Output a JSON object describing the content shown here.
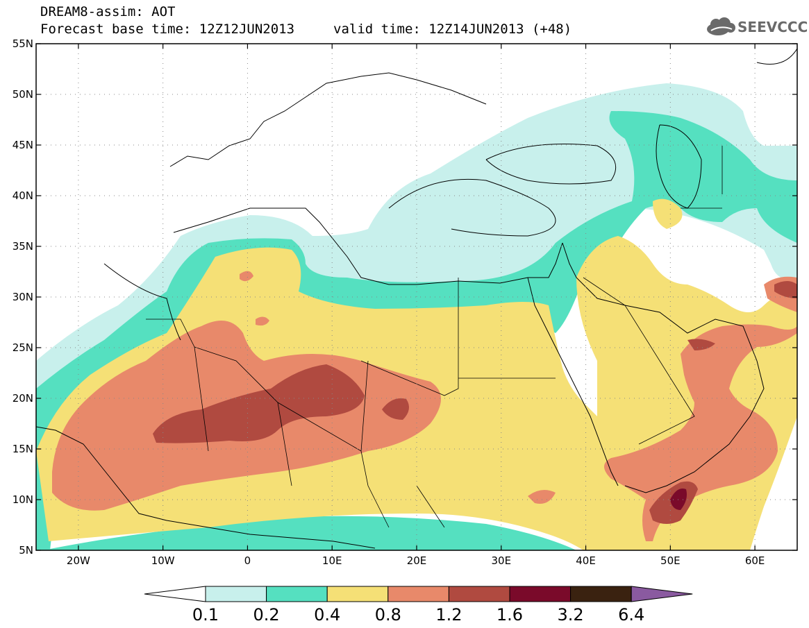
{
  "header": {
    "title_line1": "DREAM8-assim: AOT",
    "title_line2": "Forecast base time: 12Z12JUN2013",
    "valid": "valid time: 12Z14JUN2013 (+48)",
    "logo_text": "SEEVCCC"
  },
  "map": {
    "lon_range": [
      -25,
      65
    ],
    "lat_range": [
      5,
      55
    ],
    "x_ticks": [
      {
        "lon": -20,
        "label": "20W"
      },
      {
        "lon": -10,
        "label": "10W"
      },
      {
        "lon": 0,
        "label": "0"
      },
      {
        "lon": 10,
        "label": "10E"
      },
      {
        "lon": 20,
        "label": "20E"
      },
      {
        "lon": 30,
        "label": "30E"
      },
      {
        "lon": 40,
        "label": "40E"
      },
      {
        "lon": 50,
        "label": "50E"
      },
      {
        "lon": 60,
        "label": "60E"
      }
    ],
    "y_ticks": [
      {
        "lat": 55,
        "label": "55N"
      },
      {
        "lat": 50,
        "label": "50N"
      },
      {
        "lat": 45,
        "label": "45N"
      },
      {
        "lat": 40,
        "label": "40N"
      },
      {
        "lat": 35,
        "label": "35N"
      },
      {
        "lat": 30,
        "label": "30N"
      },
      {
        "lat": 25,
        "label": "25N"
      },
      {
        "lat": 20,
        "label": "20N"
      },
      {
        "lat": 15,
        "label": "15N"
      },
      {
        "lat": 10,
        "label": "10N"
      },
      {
        "lat": 5,
        "label": "5N"
      }
    ],
    "gridlines": "dotted"
  },
  "colorbar": {
    "levels": [
      "0.1",
      "0.2",
      "0.4",
      "0.8",
      "1.2",
      "1.6",
      "3.2",
      "6.4"
    ],
    "colors": [
      "#c8f0ec",
      "#55e0c0",
      "#f5e076",
      "#e8896a",
      "#b04a40",
      "#7a0a2a",
      "#3a2210",
      "#8a5aa0"
    ],
    "under_color": "#ffffff"
  },
  "chart_data": {
    "type": "heatmap",
    "variable": "AOT",
    "levels": [
      0.1,
      0.2,
      0.4,
      0.8,
      1.2,
      1.6,
      3.2,
      6.4
    ],
    "regions": [
      {
        "band": "0.1-0.2",
        "color": "#c8f0ec"
      },
      {
        "band": "0.2-0.4",
        "color": "#55e0c0"
      },
      {
        "band": "0.4-0.8",
        "color": "#f5e076"
      },
      {
        "band": "0.8-1.2",
        "color": "#e8896a"
      },
      {
        "band": "1.2-1.6",
        "color": "#b04a40"
      },
      {
        "band": "1.6-3.2",
        "color": "#7a0a2a"
      }
    ]
  }
}
